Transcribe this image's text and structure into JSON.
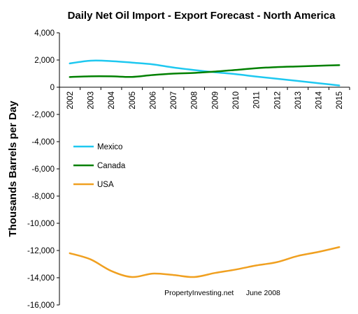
{
  "chart_data": {
    "type": "line",
    "title": "Daily Net Oil Import - Export Forecast  - North America",
    "ylabel": "Thousands Barrels per Day",
    "xlabel": "",
    "x": [
      "2002",
      "2003",
      "2004",
      "2005",
      "2006",
      "2007",
      "2008",
      "2009",
      "2010",
      "2011",
      "2012",
      "2013",
      "2014",
      "2015"
    ],
    "ylim": [
      -16000,
      4000
    ],
    "yticks": [
      4000,
      2000,
      0,
      -2000,
      -4000,
      -6000,
      -8000,
      -10000,
      -12000,
      -14000,
      -16000
    ],
    "ytick_labels": [
      "4,000",
      "2,000",
      "0",
      "-2,000",
      "-4,000",
      "-6,000",
      "-8,000",
      "-10,000",
      "-12,000",
      "-14,000",
      "-16,000"
    ],
    "legend_position": "left-middle",
    "grid": false,
    "series": [
      {
        "name": "Mexico",
        "color": "#1ec8f0",
        "values": [
          1750,
          1950,
          1920,
          1810,
          1680,
          1450,
          1260,
          1100,
          960,
          780,
          620,
          460,
          300,
          130
        ]
      },
      {
        "name": "Canada",
        "color": "#008000",
        "values": [
          750,
          800,
          800,
          760,
          900,
          1000,
          1050,
          1150,
          1270,
          1400,
          1480,
          1530,
          1580,
          1620
        ]
      },
      {
        "name": "USA",
        "color": "#f0a020",
        "values": [
          -12200,
          -12650,
          -13500,
          -13950,
          -13700,
          -13800,
          -13950,
          -13650,
          -13400,
          -13100,
          -12850,
          -12400,
          -12100,
          -11750
        ]
      }
    ],
    "annotation": "PropertyInvesting.net      June 2008"
  }
}
